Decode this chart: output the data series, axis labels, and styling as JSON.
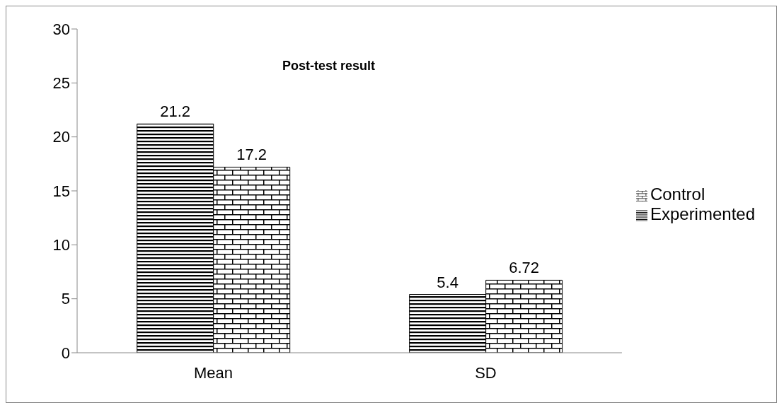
{
  "chart_data": {
    "type": "bar",
    "title": "Post-test result",
    "categories": [
      "Mean",
      "SD"
    ],
    "series": [
      {
        "name": "Experimented",
        "color": "#000000",
        "values": [
          21.2,
          5.4
        ]
      },
      {
        "name": "Control",
        "color": "#000000",
        "values": [
          17.2,
          6.72
        ]
      }
    ],
    "ylim": [
      0,
      30
    ],
    "yticks": [
      0,
      5,
      10,
      15,
      20,
      25,
      30
    ],
    "grid": false,
    "legend": "right",
    "data_labels": true
  }
}
